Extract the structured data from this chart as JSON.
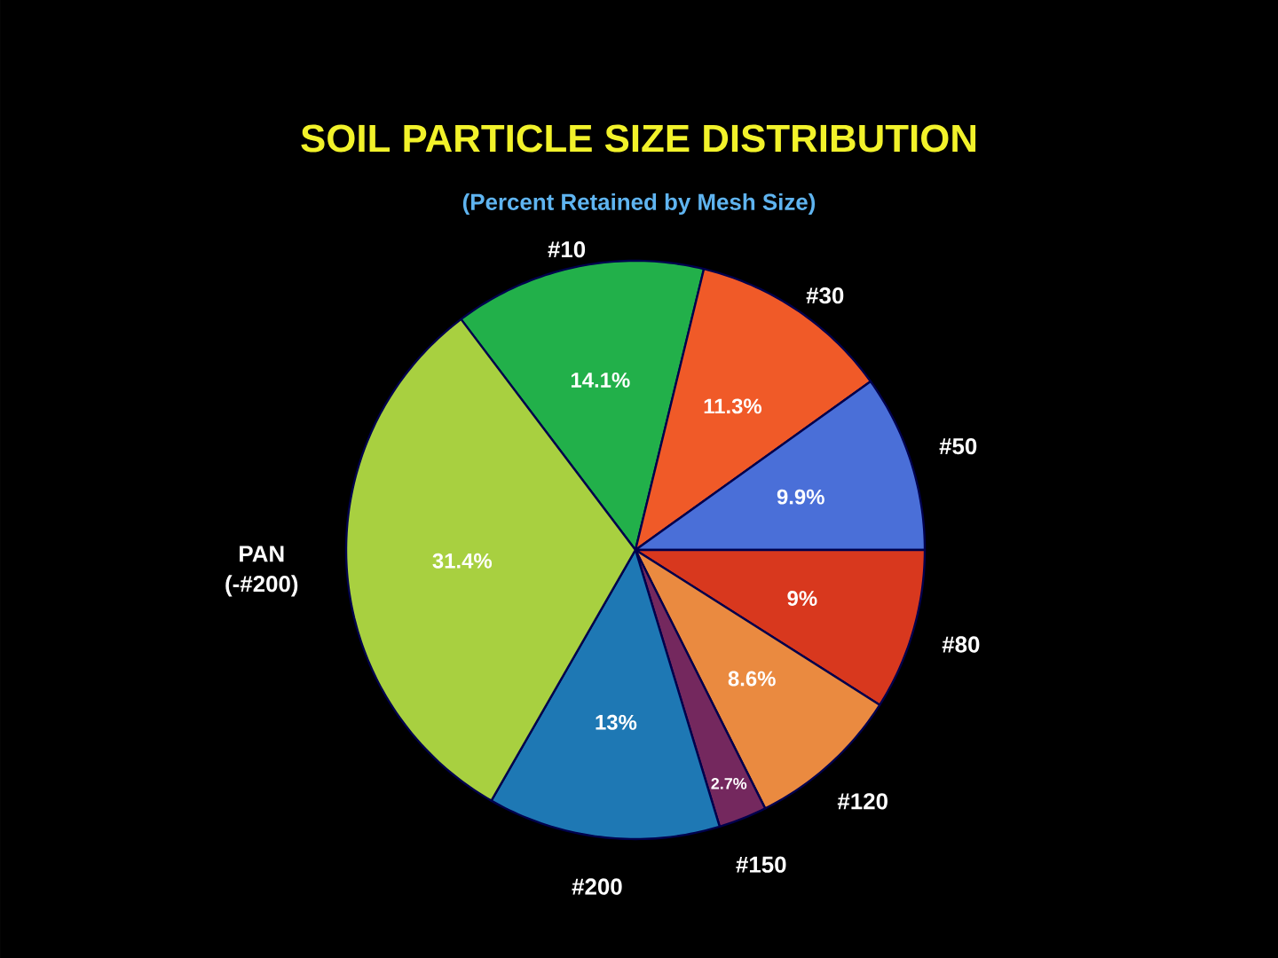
{
  "chart_data": {
    "type": "pie",
    "title": "SOIL PARTICLE SIZE DISTRIBUTION",
    "subtitle": "(Percent Retained by Mesh Size)",
    "categories": [
      "#10",
      "#30",
      "#50",
      "#80",
      "#120",
      "#150",
      "#200",
      "PAN (-#200)"
    ],
    "values": [
      14.1,
      11.3,
      9.9,
      9,
      8.6,
      2.7,
      13,
      31.4
    ],
    "value_labels": [
      "14.1%",
      "11.3%",
      "9.9%",
      "9%",
      "8.6%",
      "2.7%",
      "13%",
      "31.4%"
    ],
    "colors": [
      "#22b04a",
      "#f05a28",
      "#4a6fd8",
      "#d8381e",
      "#ea8a40",
      "#74285e",
      "#1e78b4",
      "#a8d040"
    ]
  }
}
